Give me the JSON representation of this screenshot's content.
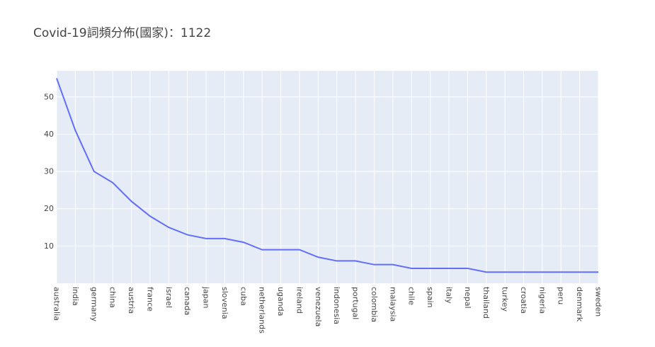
{
  "chart_data": {
    "type": "line",
    "title": "Covid-19詞頻分佈(國家)：1122",
    "xlabel": "",
    "ylabel": "",
    "categories": [
      "australia",
      "india",
      "germany",
      "china",
      "austria",
      "france",
      "israel",
      "canada",
      "japan",
      "slovenia",
      "cuba",
      "netherlands",
      "uganda",
      "ireland",
      "venezuela",
      "indonesia",
      "portugal",
      "colombia",
      "malaysia",
      "chile",
      "spain",
      "italy",
      "nepal",
      "thailand",
      "turkey",
      "croatia",
      "nigeria",
      "peru",
      "denmark",
      "sweden"
    ],
    "series": [
      {
        "values": [
          55,
          41,
          30,
          27,
          22,
          18,
          15,
          13,
          12,
          12,
          11,
          9,
          9,
          9,
          7,
          6,
          6,
          5,
          5,
          4,
          4,
          4,
          4,
          3,
          3,
          3,
          3,
          3,
          3,
          3
        ]
      }
    ],
    "yticks": [
      10,
      20,
      30,
      40,
      50
    ],
    "ylim": [
      0,
      57
    ],
    "grid": true,
    "colors": {
      "line": "#636efa",
      "plot_bg": "#e5ecf6",
      "grid": "#ffffff",
      "text": "#444444"
    }
  }
}
